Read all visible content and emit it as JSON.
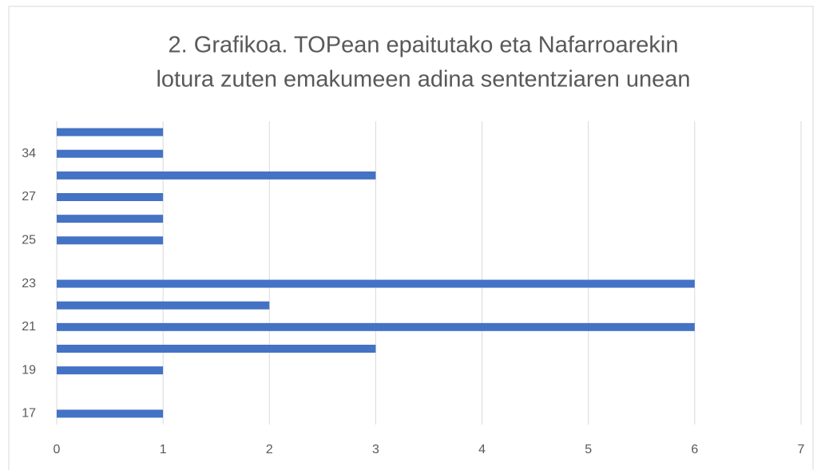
{
  "chart_data": {
    "type": "bar",
    "orientation": "horizontal",
    "title": [
      "2. Grafikoa. TOPean epaitutako eta Nafarroarekin",
      "lotura zuten emakumeen adina sententziaren unean"
    ],
    "categories": [
      "17",
      null,
      "19",
      null,
      "21",
      null,
      "23",
      null,
      "25",
      null,
      "27",
      null,
      "34",
      null
    ],
    "values": [
      1,
      0,
      1,
      3,
      6,
      2,
      6,
      0,
      1,
      1,
      1,
      3,
      1,
      1
    ],
    "color": "#4472c4",
    "xlim": [
      0,
      7
    ],
    "xticks": [
      0,
      1,
      2,
      3,
      4,
      5,
      6,
      7
    ],
    "grid": true
  }
}
